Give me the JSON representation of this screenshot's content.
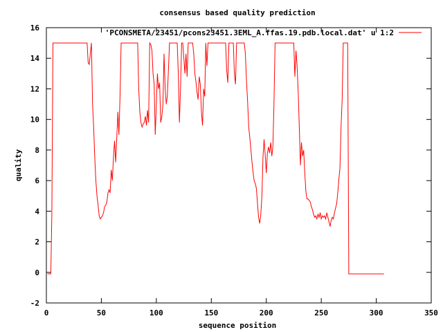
{
  "chart_data": {
    "type": "line",
    "title": "consensus based quality prediction",
    "xlabel": "sequence position",
    "ylabel": "quality",
    "xlim": [
      0,
      350
    ],
    "ylim": [
      -2,
      16
    ],
    "xticks": [
      0,
      50,
      100,
      150,
      200,
      250,
      300,
      350
    ],
    "yticks": [
      -2,
      0,
      2,
      4,
      6,
      8,
      10,
      12,
      14,
      16
    ],
    "legend_position": "top-right",
    "series": [
      {
        "name": "'PCONSMETA/23451/pcons23451.3EML_A.ffas.19.pdb.local.dat' u 1:2",
        "color": "#ff0000",
        "points": [
          [
            1,
            -0.1
          ],
          [
            4,
            -0.1
          ],
          [
            5,
            3.8
          ],
          [
            6,
            15
          ],
          [
            37,
            15
          ],
          [
            38,
            13.7
          ],
          [
            39,
            13.6
          ],
          [
            40,
            14.3
          ],
          [
            41,
            15
          ],
          [
            42,
            11
          ],
          [
            43,
            9.5
          ],
          [
            44,
            7.5
          ],
          [
            45,
            6
          ],
          [
            46,
            5
          ],
          [
            47,
            4.4
          ],
          [
            48,
            3.7
          ],
          [
            49,
            3.5
          ],
          [
            50,
            3.6
          ],
          [
            51,
            3.7
          ],
          [
            52,
            3.9
          ],
          [
            53,
            4.3
          ],
          [
            54,
            4.4
          ],
          [
            55,
            4.6
          ],
          [
            56,
            5.2
          ],
          [
            57,
            5.4
          ],
          [
            58,
            5.2
          ],
          [
            59,
            6.7
          ],
          [
            60,
            6
          ],
          [
            61,
            7.5
          ],
          [
            62,
            8.6
          ],
          [
            63,
            7.2
          ],
          [
            64,
            8.8
          ],
          [
            65,
            10.5
          ],
          [
            66,
            9
          ],
          [
            67,
            11.5
          ],
          [
            68,
            15
          ],
          [
            83,
            15
          ],
          [
            84,
            12
          ],
          [
            85,
            10.5
          ],
          [
            86,
            9.8
          ],
          [
            87,
            9.5
          ],
          [
            88,
            9.7
          ],
          [
            89,
            9.8
          ],
          [
            90,
            10.2
          ],
          [
            91,
            9.6
          ],
          [
            92,
            10.6
          ],
          [
            93,
            9.8
          ],
          [
            94,
            15
          ],
          [
            95,
            14.9
          ],
          [
            96,
            14.5
          ],
          [
            97,
            13
          ],
          [
            98,
            12.3
          ],
          [
            99,
            9
          ],
          [
            100,
            11
          ],
          [
            101,
            13
          ],
          [
            102,
            12
          ],
          [
            103,
            12.4
          ],
          [
            104,
            9.8
          ],
          [
            105,
            10.2
          ],
          [
            106,
            11
          ],
          [
            107,
            14.3
          ],
          [
            108,
            12
          ],
          [
            109,
            11
          ],
          [
            110,
            11.5
          ],
          [
            111,
            13.2
          ],
          [
            112,
            15
          ],
          [
            119,
            15
          ],
          [
            120,
            13
          ],
          [
            121,
            9.8
          ],
          [
            122,
            12
          ],
          [
            123,
            15
          ],
          [
            124,
            15
          ],
          [
            125,
            14
          ],
          [
            126,
            13
          ],
          [
            127,
            14.3
          ],
          [
            128,
            12.8
          ],
          [
            129,
            15
          ],
          [
            133,
            15
          ],
          [
            134,
            14.3
          ],
          [
            135,
            13
          ],
          [
            136,
            12.5
          ],
          [
            137,
            11.8
          ],
          [
            138,
            11.3
          ],
          [
            139,
            12.8
          ],
          [
            140,
            12.3
          ],
          [
            141,
            10.5
          ],
          [
            142,
            9.6
          ],
          [
            143,
            12
          ],
          [
            144,
            11.5
          ],
          [
            145,
            15
          ],
          [
            146,
            13.5
          ],
          [
            147,
            15
          ],
          [
            163,
            15
          ],
          [
            164,
            13.2
          ],
          [
            165,
            12.4
          ],
          [
            166,
            15
          ],
          [
            170,
            15
          ],
          [
            171,
            13
          ],
          [
            172,
            12.3
          ],
          [
            173,
            15
          ],
          [
            180,
            15
          ],
          [
            181,
            14.3
          ],
          [
            182,
            12.5
          ],
          [
            183,
            11.2
          ],
          [
            184,
            9.5
          ],
          [
            185,
            8.8
          ],
          [
            186,
            8
          ],
          [
            187,
            7.2
          ],
          [
            188,
            6.5
          ],
          [
            189,
            6
          ],
          [
            190,
            5.8
          ],
          [
            191,
            5.5
          ],
          [
            192,
            4.5
          ],
          [
            193,
            3.6
          ],
          [
            194,
            3.2
          ],
          [
            195,
            3.8
          ],
          [
            196,
            5
          ],
          [
            197,
            7.5
          ],
          [
            198,
            8.7
          ],
          [
            199,
            7.7
          ],
          [
            200,
            6.5
          ],
          [
            201,
            7.8
          ],
          [
            202,
            8.2
          ],
          [
            203,
            7.8
          ],
          [
            204,
            8.5
          ],
          [
            205,
            7.6
          ],
          [
            206,
            8.2
          ],
          [
            207,
            11
          ],
          [
            208,
            15
          ],
          [
            225,
            15
          ],
          [
            226,
            12.8
          ],
          [
            227,
            14.5
          ],
          [
            228,
            13.5
          ],
          [
            229,
            11.8
          ],
          [
            230,
            9.5
          ],
          [
            231,
            7
          ],
          [
            232,
            8.5
          ],
          [
            233,
            7.6
          ],
          [
            234,
            8
          ],
          [
            235,
            6.5
          ],
          [
            236,
            5.3
          ],
          [
            237,
            4.8
          ],
          [
            238,
            4.8
          ],
          [
            239,
            4.7
          ],
          [
            240,
            4.6
          ],
          [
            241,
            4.3
          ],
          [
            242,
            4.1
          ],
          [
            243,
            3.8
          ],
          [
            244,
            3.6
          ],
          [
            245,
            3.7
          ],
          [
            246,
            3.5
          ],
          [
            247,
            3.8
          ],
          [
            248,
            3.6
          ],
          [
            249,
            3.9
          ],
          [
            250,
            3.5
          ],
          [
            251,
            3.7
          ],
          [
            252,
            3.6
          ],
          [
            253,
            3.7
          ],
          [
            254,
            3.5
          ],
          [
            255,
            3.9
          ],
          [
            256,
            3.6
          ],
          [
            257,
            3.3
          ],
          [
            258,
            3.0
          ],
          [
            259,
            3.4
          ],
          [
            260,
            3.6
          ],
          [
            261,
            3.5
          ],
          [
            262,
            3.9
          ],
          [
            263,
            4.2
          ],
          [
            264,
            4.5
          ],
          [
            265,
            5.2
          ],
          [
            266,
            6.1
          ],
          [
            267,
            6.8
          ],
          [
            268,
            9.5
          ],
          [
            269,
            11.3
          ],
          [
            270,
            15
          ],
          [
            274,
            15
          ],
          [
            275,
            -0.1
          ],
          [
            307,
            -0.1
          ]
        ]
      }
    ]
  }
}
